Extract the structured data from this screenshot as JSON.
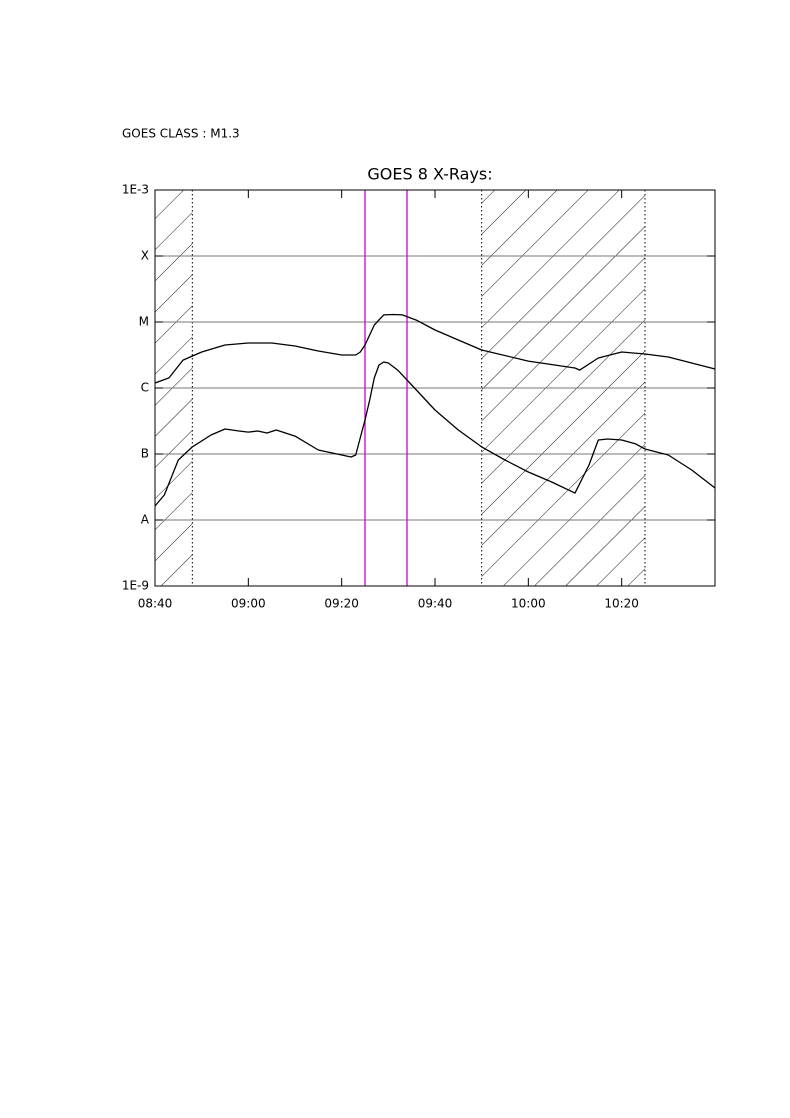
{
  "chart_data": {
    "type": "line",
    "annotation": "GOES CLASS : M1.3",
    "title": "GOES 8 X-Rays:",
    "xlim": [
      "08:40",
      "10:40"
    ],
    "xticks": [
      "08:40",
      "09:00",
      "09:20",
      "09:40",
      "10:00",
      "10:20"
    ],
    "ylim": [
      1e-09,
      0.001
    ],
    "log_y": true,
    "grid": true,
    "yticks": [
      {
        "value": 1e-09,
        "label": "1E-9"
      },
      {
        "value": 1e-08,
        "label": "A"
      },
      {
        "value": 1e-07,
        "label": "B"
      },
      {
        "value": 1e-06,
        "label": "C"
      },
      {
        "value": 1e-05,
        "label": "M"
      },
      {
        "value": 0.0001,
        "label": "X"
      },
      {
        "value": 0.001,
        "label": "1E-3"
      }
    ],
    "shaded_intervals": [
      [
        "08:40",
        "08:48"
      ],
      [
        "09:50",
        "10:25"
      ]
    ],
    "markers": {
      "color": "#cc00cc",
      "x": [
        "09:25",
        "09:34"
      ]
    },
    "series": [
      {
        "color": "#000000",
        "x": [
          "08:40",
          "08:43",
          "08:46",
          "08:50",
          "08:55",
          "09:00",
          "09:05",
          "09:10",
          "09:15",
          "09:20",
          "09:23",
          "09:24",
          "09:25",
          "09:27",
          "09:29",
          "09:31",
          "09:33",
          "09:36",
          "09:40",
          "09:45",
          "09:50",
          "10:00",
          "10:10",
          "10:11",
          "10:15",
          "10:20",
          "10:25",
          "10:30",
          "10:40"
        ],
        "values": [
          1.19e-06,
          1.42e-06,
          2.65e-06,
          3.51e-06,
          4.49e-06,
          4.81e-06,
          4.81e-06,
          4.33e-06,
          3.64e-06,
          3.16e-06,
          3.16e-06,
          3.51e-06,
          4.49e-06,
          9e-06,
          1.28e-05,
          1.3e-05,
          1.28e-05,
          1.07e-05,
          7.57e-06,
          5.34e-06,
          3.77e-06,
          2.56e-06,
          2.01e-06,
          1.87e-06,
          2.85e-06,
          3.51e-06,
          3.27e-06,
          2.95e-06,
          1.94e-06
        ]
      },
      {
        "color": "#000000",
        "x": [
          "08:40",
          "08:42",
          "08:45",
          "08:48",
          "08:52",
          "08:55",
          "08:58",
          "09:00",
          "09:02",
          "09:04",
          "09:06",
          "09:10",
          "09:15",
          "09:20",
          "09:22",
          "09:23",
          "09:25",
          "09:26",
          "09:27",
          "09:28",
          "09:29",
          "09:30",
          "09:32",
          "09:35",
          "09:40",
          "09:45",
          "09:50",
          "09:55",
          "10:00",
          "10:05",
          "10:10",
          "10:13",
          "10:15",
          "10:17",
          "10:20",
          "10:23",
          "10:25",
          "10:30",
          "10:35",
          "10:40"
        ],
        "values": [
          1.63e-08,
          2.39e-08,
          8.11e-08,
          1.28e-07,
          1.94e-07,
          2.39e-07,
          2.23e-07,
          2.15e-07,
          2.23e-07,
          2.08e-07,
          2.31e-07,
          1.87e-07,
          1.15e-07,
          9.66e-08,
          9e-08,
          9.66e-08,
          3.27e-07,
          6.58e-07,
          1.42e-06,
          2.23e-06,
          2.48e-06,
          2.39e-06,
          1.87e-06,
          1.11e-06,
          4.64e-07,
          2.31e-07,
          1.28e-07,
          8.11e-08,
          5.33e-08,
          3.77e-08,
          2.56e-08,
          6.81e-08,
          1.63e-07,
          1.69e-07,
          1.63e-07,
          1.42e-07,
          1.19e-07,
          9.66e-08,
          5.73e-08,
          3.05e-08
        ]
      }
    ]
  }
}
